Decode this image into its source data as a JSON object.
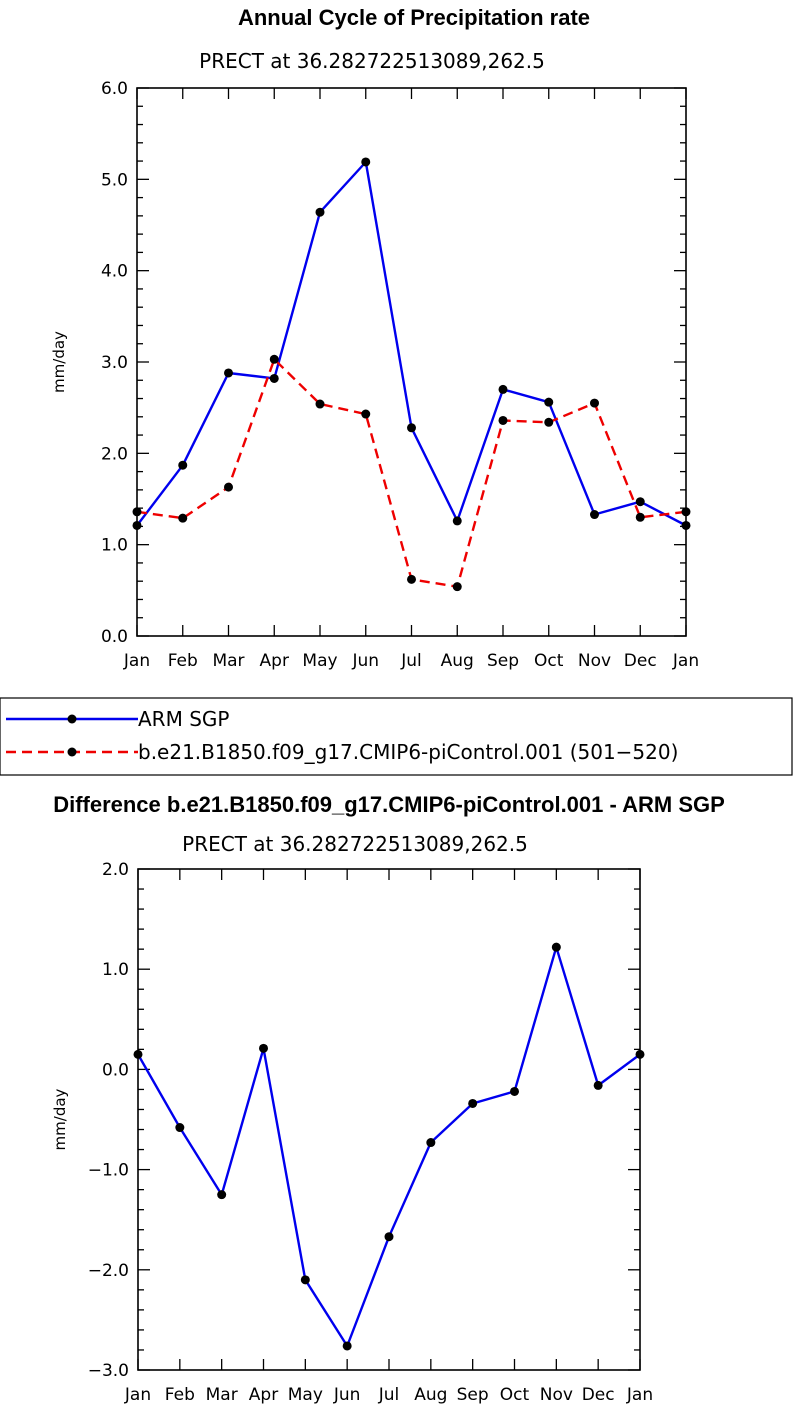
{
  "chart_data": [
    {
      "type": "line",
      "title": "Annual Cycle of Precipitation rate",
      "subtitle": "PRECT at 36.282722513089,262.5",
      "ylabel": "mm/day",
      "ylim": [
        0,
        6
      ],
      "yticks": [
        0,
        1,
        2,
        3,
        4,
        5,
        6
      ],
      "ytick_labels": [
        "0.0",
        "1.0",
        "2.0",
        "3.0",
        "4.0",
        "5.0",
        "6.0"
      ],
      "categories": [
        "Jan",
        "Feb",
        "Mar",
        "Apr",
        "May",
        "Jun",
        "Jul",
        "Aug",
        "Sep",
        "Oct",
        "Nov",
        "Dec",
        "Jan"
      ],
      "series": [
        {
          "name": "ARM SGP",
          "color": "#0000ee",
          "style": "solid",
          "values": [
            1.21,
            1.87,
            2.88,
            2.82,
            4.64,
            5.19,
            2.28,
            1.26,
            2.7,
            2.56,
            1.33,
            1.47,
            1.21
          ]
        },
        {
          "name": "b.e21.B1850.f09_g17.CMIP6-piControl.001 (501-520)",
          "color": "#ee0000",
          "style": "dashed",
          "values": [
            1.36,
            1.29,
            1.63,
            3.03,
            2.54,
            2.43,
            0.62,
            0.54,
            2.36,
            2.34,
            2.55,
            1.3,
            1.36
          ]
        }
      ]
    },
    {
      "type": "line",
      "title": "Difference b.e21.B1850.f09_g17.CMIP6-piControl.001 - ARM SGP",
      "subtitle": "PRECT at 36.282722513089,262.5",
      "ylabel": "mm/day",
      "ylim": [
        -3,
        2
      ],
      "yticks": [
        -3,
        -2,
        -1,
        0,
        1,
        2
      ],
      "ytick_labels": [
        "−3.0",
        "−2.0",
        "−1.0",
        "0.0",
        "1.0",
        "2.0"
      ],
      "categories": [
        "Jan",
        "Feb",
        "Mar",
        "Apr",
        "May",
        "Jun",
        "Jul",
        "Aug",
        "Sep",
        "Oct",
        "Nov",
        "Dec",
        "Jan"
      ],
      "series": [
        {
          "name": "Difference",
          "color": "#0000ee",
          "style": "solid",
          "values": [
            0.15,
            -0.58,
            -1.25,
            0.21,
            -2.1,
            -2.76,
            -1.67,
            -0.73,
            -0.34,
            -0.22,
            1.22,
            -0.16,
            0.15
          ]
        }
      ]
    }
  ],
  "legend": {
    "entries": [
      "ARM SGP",
      "b.e21.B1850.f09_g17.CMIP6-piControl.001 (501−520)"
    ]
  }
}
